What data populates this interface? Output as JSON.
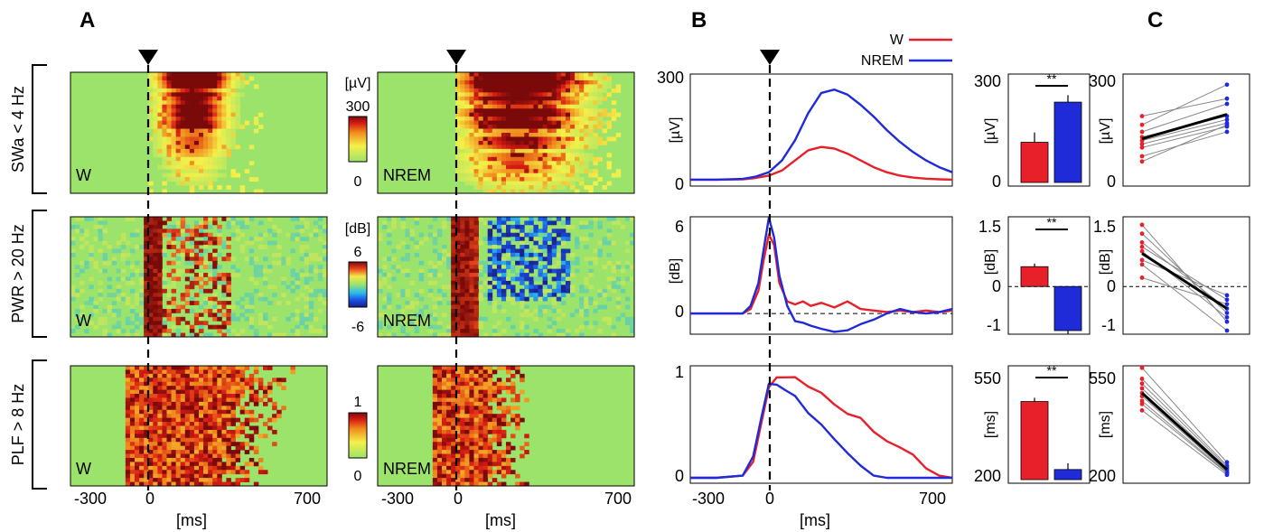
{
  "panel_letters": [
    "A",
    "B",
    "C"
  ],
  "row_labels": [
    "SWa < 4 Hz",
    "PWR > 20 Hz",
    "PLF > 8 Hz"
  ],
  "colorbars": [
    {
      "unit": "[µV]",
      "max": "300",
      "min": "0",
      "scheme": "green-yellow-red"
    },
    {
      "unit": "[dB]",
      "max": "6",
      "min": "-6",
      "scheme": "jet"
    },
    {
      "unit": "",
      "max": "1",
      "min": "0",
      "scheme": "green-yellow-red"
    }
  ],
  "heatmap_labels": [
    "W",
    "NREM"
  ],
  "time_axis": {
    "label": "[ms]",
    "ticks": [
      "-300",
      "0",
      "700"
    ],
    "range": [
      -300,
      700
    ]
  },
  "legend": {
    "items": [
      {
        "name": "W",
        "color": "#e8202a"
      },
      {
        "name": "NREM",
        "color": "#1f2ad9"
      }
    ]
  },
  "colors": {
    "W": "#e8202a",
    "NREM": "#1f2ad9",
    "paired": "#888888",
    "mean": "#000000"
  },
  "significance": "**",
  "chart_data": [
    {
      "type": "line",
      "panel": "B",
      "row": "SWa < 4 Hz",
      "ylabel": "[µV]",
      "ylim": [
        0,
        300
      ],
      "yticks": [
        "0",
        "300"
      ],
      "xlabel": "[ms]",
      "xlim": [
        -300,
        700
      ],
      "x": [
        -300,
        -200,
        -100,
        -50,
        0,
        50,
        100,
        150,
        200,
        250,
        300,
        350,
        400,
        450,
        500,
        550,
        600,
        650,
        700
      ],
      "series": [
        {
          "name": "W",
          "values": [
            3,
            3,
            4,
            8,
            15,
            30,
            60,
            90,
            100,
            95,
            80,
            60,
            40,
            25,
            15,
            9,
            6,
            4,
            3
          ]
        },
        {
          "name": "NREM",
          "values": [
            3,
            3,
            5,
            12,
            25,
            60,
            120,
            200,
            260,
            270,
            255,
            225,
            190,
            150,
            115,
            85,
            60,
            40,
            25
          ]
        }
      ]
    },
    {
      "type": "bar",
      "panel": "B",
      "row": "SWa < 4 Hz",
      "ylabel": "[µV]",
      "ylim": [
        0,
        300
      ],
      "yticks": [
        "0",
        "300"
      ],
      "categories": [
        "W",
        "NREM"
      ],
      "values": [
        115,
        230
      ],
      "errors": [
        28,
        20
      ]
    },
    {
      "type": "scatter",
      "panel": "C",
      "row": "SWa < 4 Hz",
      "ylabel": "[µV]",
      "ylim": [
        0,
        300
      ],
      "yticks": [
        "0",
        "300"
      ],
      "categories": [
        "W",
        "NREM"
      ],
      "pairs": [
        [
          60,
          165
        ],
        [
          75,
          145
        ],
        [
          100,
          160
        ],
        [
          110,
          170
        ],
        [
          120,
          180
        ],
        [
          130,
          190
        ],
        [
          145,
          225
        ],
        [
          165,
          280
        ],
        [
          190,
          240
        ]
      ],
      "mean": [
        125,
        195
      ]
    },
    {
      "type": "line",
      "panel": "B",
      "row": "PWR > 20 Hz",
      "ylabel": "[dB]",
      "ylim": [
        -1,
        6
      ],
      "yticks": [
        "0",
        "6"
      ],
      "xlabel": "[ms]",
      "xlim": [
        -300,
        700
      ],
      "x": [
        -300,
        -200,
        -100,
        -70,
        -40,
        -20,
        0,
        20,
        40,
        70,
        100,
        130,
        160,
        200,
        250,
        300,
        350,
        400,
        450,
        500,
        550,
        600,
        650,
        700
      ],
      "series": [
        {
          "name": "W",
          "values": [
            0,
            0,
            0,
            0.3,
            1.5,
            3.5,
            5.2,
            4.5,
            2,
            0.8,
            0.6,
            0.8,
            0.5,
            0.7,
            0.4,
            0.8,
            0.3,
            0.2,
            0.1,
            0.2,
            0.1,
            0.2,
            0.1,
            0.2
          ]
        },
        {
          "name": "NREM",
          "values": [
            0,
            0,
            0,
            0.5,
            2,
            4.2,
            6.3,
            5,
            2.5,
            0.5,
            -0.5,
            -0.6,
            -0.8,
            -1,
            -1.2,
            -1.1,
            -0.7,
            -0.4,
            0,
            0.3,
            0.1,
            0,
            0.1,
            0.3
          ]
        }
      ]
    },
    {
      "type": "bar",
      "panel": "B",
      "row": "PWR > 20 Hz",
      "ylabel": "[dB]",
      "ylim": [
        -1,
        1.5
      ],
      "yticks": [
        "-1",
        "0",
        "1.5"
      ],
      "categories": [
        "W",
        "NREM"
      ],
      "values": [
        0.45,
        -1.0
      ],
      "errors": [
        0.07,
        0.08
      ]
    },
    {
      "type": "scatter",
      "panel": "C",
      "row": "PWR > 20 Hz",
      "ylabel": "[dB]",
      "ylim": [
        -1,
        1.5
      ],
      "yticks": [
        "-1",
        "0",
        "1.5"
      ],
      "categories": [
        "W",
        "NREM"
      ],
      "pairs": [
        [
          1.4,
          -0.8
        ],
        [
          1.2,
          -0.6
        ],
        [
          1.0,
          -0.5
        ],
        [
          0.9,
          -0.3
        ],
        [
          0.8,
          -0.7
        ],
        [
          0.6,
          -0.2
        ],
        [
          0.5,
          -1.0
        ],
        [
          0.2,
          -0.4
        ]
      ],
      "mean": [
        0.75,
        -0.5
      ]
    },
    {
      "type": "line",
      "panel": "B",
      "row": "PLF > 8 Hz",
      "ylabel": "",
      "ylim": [
        0,
        1
      ],
      "yticks": [
        "0",
        "1"
      ],
      "xlabel": "[ms]",
      "xlim": [
        -300,
        700
      ],
      "x": [
        -300,
        -200,
        -100,
        -60,
        -30,
        0,
        30,
        60,
        100,
        150,
        200,
        250,
        300,
        350,
        400,
        450,
        500,
        550,
        600,
        650,
        700
      ],
      "series": [
        {
          "name": "W",
          "values": [
            0,
            0,
            0.02,
            0.15,
            0.5,
            0.85,
            0.93,
            0.96,
            0.95,
            0.85,
            0.78,
            0.7,
            0.6,
            0.55,
            0.45,
            0.35,
            0.28,
            0.2,
            0.1,
            0.02,
            0
          ]
        },
        {
          "name": "NREM",
          "values": [
            0,
            0,
            0.02,
            0.2,
            0.55,
            0.9,
            0.88,
            0.82,
            0.75,
            0.62,
            0.5,
            0.35,
            0.25,
            0.12,
            0.02,
            0,
            0,
            0,
            0,
            0,
            0
          ]
        }
      ]
    },
    {
      "type": "bar",
      "panel": "B",
      "row": "PLF > 8 Hz",
      "ylabel": "[ms]",
      "ylim": [
        200,
        550
      ],
      "yticks": [
        "200",
        "550"
      ],
      "categories": [
        "W",
        "NREM"
      ],
      "values": [
        448,
        232
      ],
      "errors": [
        12,
        20
      ]
    },
    {
      "type": "scatter",
      "panel": "C",
      "row": "PLF > 8 Hz",
      "ylabel": "[ms]",
      "ylim": [
        200,
        550
      ],
      "yticks": [
        "200",
        "550"
      ],
      "categories": [
        "W",
        "NREM"
      ],
      "pairs": [
        [
          555,
          255
        ],
        [
          520,
          245
        ],
        [
          505,
          240
        ],
        [
          490,
          235
        ],
        [
          475,
          230
        ],
        [
          465,
          225
        ],
        [
          450,
          222
        ],
        [
          440,
          220
        ],
        [
          420,
          215
        ]
      ],
      "mean": [
        475,
        232
      ]
    }
  ]
}
